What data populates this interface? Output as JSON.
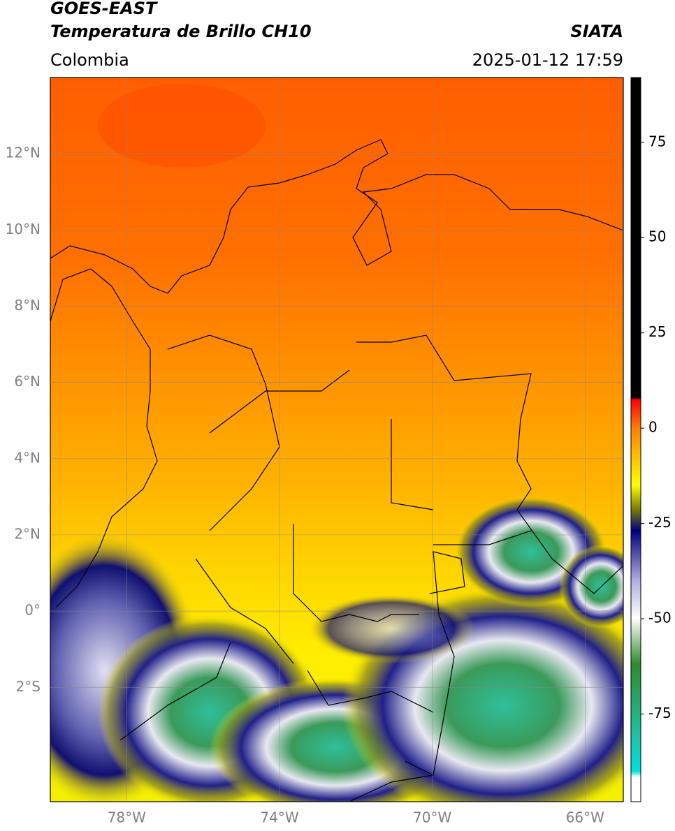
{
  "header": {
    "title": "GOES-EAST",
    "subtitle": "Temperatura de Brillo CH10",
    "source": "SIATA",
    "region": "Colombia",
    "datetime": "2025-01-12 17:59"
  },
  "chart_data": {
    "type": "map",
    "xlim": [
      -80,
      -65
    ],
    "ylim": [
      -5,
      14
    ],
    "xticks": [
      {
        "value": -78,
        "label": "78°W"
      },
      {
        "value": -74,
        "label": "74°W"
      },
      {
        "value": -70,
        "label": "70°W"
      },
      {
        "value": -66,
        "label": "66°W"
      }
    ],
    "yticks": [
      {
        "value": 12,
        "label": "12°N"
      },
      {
        "value": 10,
        "label": "10°N"
      },
      {
        "value": 8,
        "label": "8°N"
      },
      {
        "value": 6,
        "label": "6°N"
      },
      {
        "value": 4,
        "label": "4°N"
      },
      {
        "value": 2,
        "label": "2°N"
      },
      {
        "value": 0,
        "label": "0°"
      },
      {
        "value": -2,
        "label": "2°S"
      }
    ],
    "grid": true,
    "colorbar": {
      "lim": [
        -98,
        92
      ],
      "ticks": [
        75,
        50,
        25,
        0,
        -25,
        -50,
        -75
      ]
    }
  }
}
